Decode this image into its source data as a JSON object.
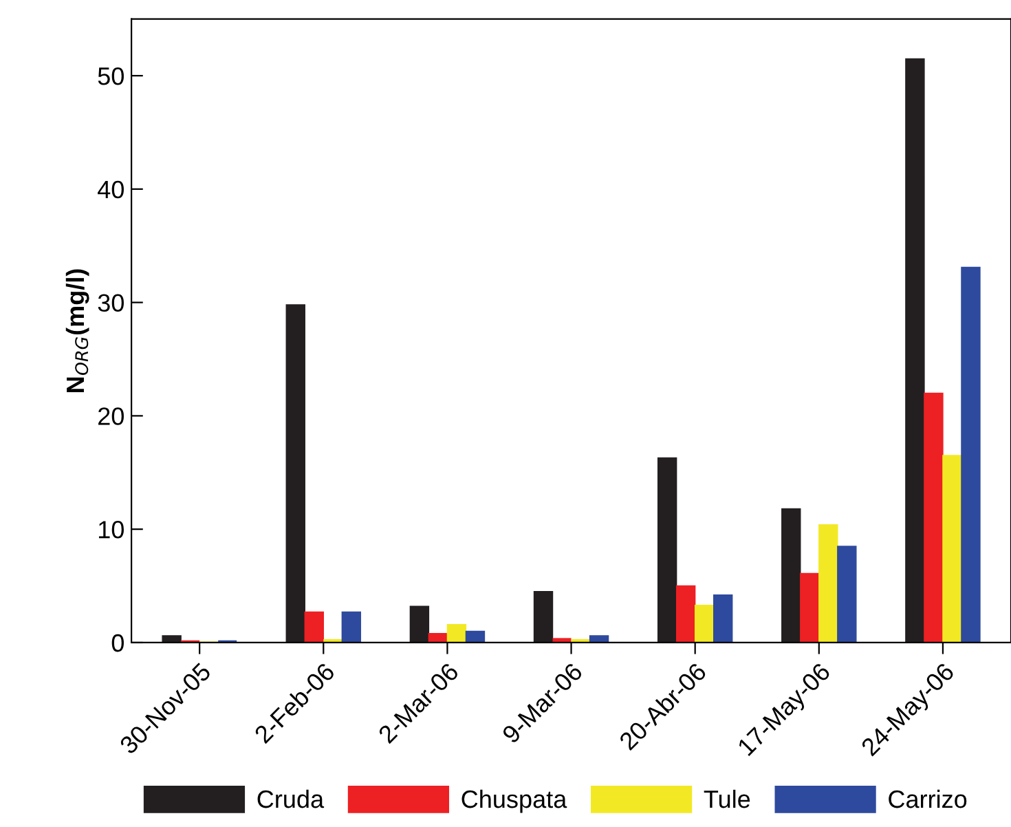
{
  "chart_data": {
    "type": "bar",
    "ylabel": "N$_{ORG}$(mg/l)",
    "categories": [
      "30-Nov-05",
      "2-Feb-06",
      "2-Mar-06",
      "9-Mar-06",
      "20-Abr-06",
      "17-May-06",
      "24-May-06"
    ],
    "series": [
      {
        "name": "Cruda",
        "color": "#231f20",
        "values": [
          0.6,
          29.8,
          3.2,
          4.5,
          16.3,
          11.8,
          51.5
        ]
      },
      {
        "name": "Chuspata",
        "color": "#ed2024",
        "values": [
          0.2,
          2.7,
          0.8,
          0.4,
          5.0,
          6.1,
          22.0
        ]
      },
      {
        "name": "Tule",
        "color": "#f2e924",
        "values": [
          0.1,
          0.3,
          1.6,
          0.3,
          3.3,
          10.4,
          16.5
        ]
      },
      {
        "name": "Carrizo",
        "color": "#2e4a9e",
        "values": [
          0.2,
          2.7,
          1.0,
          0.6,
          4.2,
          8.5,
          33.1
        ]
      }
    ],
    "ylim": [
      0,
      55
    ],
    "yticks": [
      0,
      10,
      20,
      30,
      40,
      50
    ],
    "grid": false,
    "legend": "bottom"
  }
}
